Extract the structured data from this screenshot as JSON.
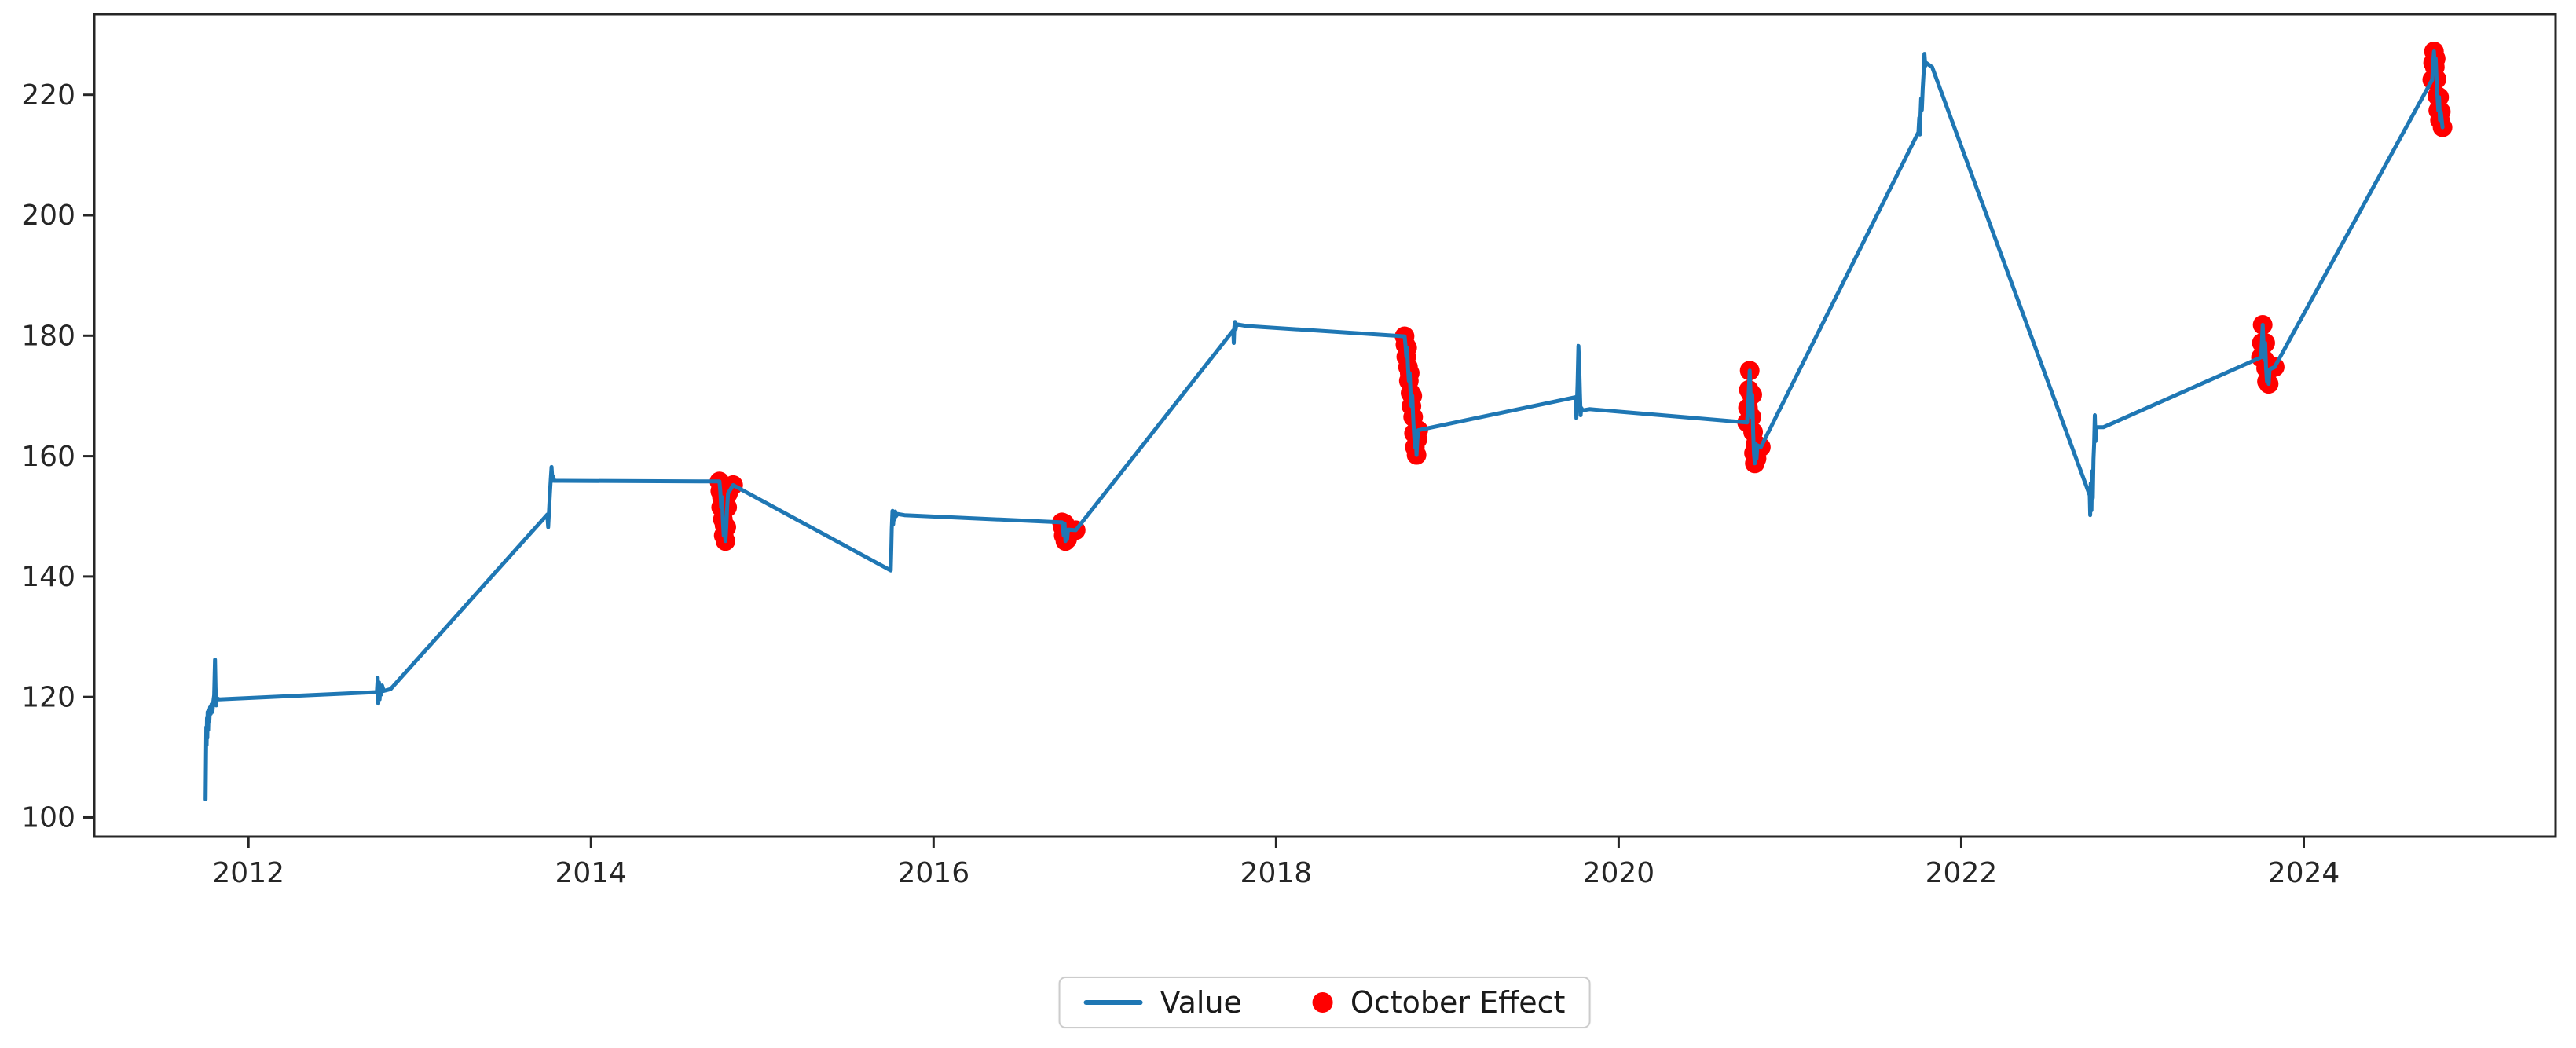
{
  "figure": {
    "background": "#ffffff",
    "axis_color": "#262626"
  },
  "legend": {
    "items": [
      {
        "label": "Value",
        "swatch": "line-swatch",
        "color": "#1f77b4"
      },
      {
        "label": "October Effect",
        "swatch": "dot-swatch",
        "color": "#ff0000"
      }
    ]
  },
  "chart_data": {
    "type": "line",
    "title": "",
    "xlabel": "",
    "ylabel": "",
    "grid": false,
    "legend_position": "bottom-center",
    "xlim": [
      2011.1,
      2025.47
    ],
    "ylim": [
      96.8,
      233.4
    ],
    "x_ticks": [
      2012,
      2014,
      2016,
      2018,
      2020,
      2022,
      2024
    ],
    "y_ticks": [
      100,
      120,
      140,
      160,
      180,
      200,
      220
    ],
    "october_effect_years": [
      2014,
      2016,
      2018,
      2020,
      2023,
      2024
    ],
    "series": [
      {
        "name": "Value",
        "type": "line",
        "color": "#1f77b4",
        "points": [
          [
            2011.75,
            103.0
          ],
          [
            2011.752,
            110.0
          ],
          [
            2011.754,
            115.0
          ],
          [
            2011.756,
            112.0
          ],
          [
            2011.758,
            116.5
          ],
          [
            2011.76,
            113.2
          ],
          [
            2011.762,
            117.5
          ],
          [
            2011.765,
            114.5
          ],
          [
            2011.768,
            117.8
          ],
          [
            2011.772,
            116.0
          ],
          [
            2011.776,
            118.3
          ],
          [
            2011.78,
            117.2
          ],
          [
            2011.785,
            118.8
          ],
          [
            2011.79,
            117.5
          ],
          [
            2011.795,
            119.2
          ],
          [
            2011.8,
            120.3
          ],
          [
            2011.805,
            126.2
          ],
          [
            2011.808,
            121.5
          ],
          [
            2011.812,
            118.6
          ],
          [
            2011.816,
            119.8
          ],
          [
            2011.83,
            119.6
          ],
          [
            2012.75,
            120.8
          ],
          [
            2012.755,
            123.2
          ],
          [
            2012.758,
            118.9
          ],
          [
            2012.762,
            122.4
          ],
          [
            2012.766,
            119.6
          ],
          [
            2012.77,
            121.8
          ],
          [
            2012.775,
            120.4
          ],
          [
            2012.78,
            121.9
          ],
          [
            2012.79,
            121.0
          ],
          [
            2012.83,
            121.3
          ],
          [
            2013.745,
            150.3
          ],
          [
            2013.75,
            148.2
          ],
          [
            2013.755,
            151.0
          ],
          [
            2013.76,
            153.5
          ],
          [
            2013.765,
            156.0
          ],
          [
            2013.77,
            158.2
          ],
          [
            2013.775,
            155.9
          ],
          [
            2013.78,
            156.6
          ],
          [
            2013.785,
            155.9
          ],
          [
            2013.83,
            155.9
          ],
          [
            2014.75,
            155.8
          ],
          [
            2014.755,
            154.2
          ],
          [
            2014.76,
            151.5
          ],
          [
            2014.765,
            153.2
          ],
          [
            2014.77,
            149.5
          ],
          [
            2014.775,
            146.8
          ],
          [
            2014.78,
            148.5
          ],
          [
            2014.785,
            145.9
          ],
          [
            2014.79,
            148.2
          ],
          [
            2014.795,
            151.5
          ],
          [
            2014.8,
            153.8
          ],
          [
            2014.83,
            155.2
          ],
          [
            2015.75,
            141.0
          ],
          [
            2015.753,
            144.5
          ],
          [
            2015.756,
            148.0
          ],
          [
            2015.76,
            150.9
          ],
          [
            2015.764,
            148.7
          ],
          [
            2015.768,
            150.6
          ],
          [
            2015.772,
            149.5
          ],
          [
            2015.776,
            150.8
          ],
          [
            2015.78,
            150.0
          ],
          [
            2015.79,
            150.4
          ],
          [
            2015.83,
            150.2
          ],
          [
            2016.75,
            149.0
          ],
          [
            2016.755,
            148.2
          ],
          [
            2016.76,
            146.8
          ],
          [
            2016.765,
            148.8
          ],
          [
            2016.77,
            145.9
          ],
          [
            2016.775,
            147.3
          ],
          [
            2016.78,
            146.2
          ],
          [
            2016.785,
            147.8
          ],
          [
            2016.83,
            147.7
          ],
          [
            2017.75,
            180.9
          ],
          [
            2017.753,
            178.8
          ],
          [
            2017.756,
            181.4
          ],
          [
            2017.76,
            182.3
          ],
          [
            2017.764,
            181.1
          ],
          [
            2017.768,
            181.9
          ],
          [
            2017.83,
            181.6
          ],
          [
            2018.75,
            179.9
          ],
          [
            2018.755,
            178.5
          ],
          [
            2018.76,
            176.5
          ],
          [
            2018.765,
            178.0
          ],
          [
            2018.77,
            174.8
          ],
          [
            2018.775,
            172.5
          ],
          [
            2018.78,
            173.8
          ],
          [
            2018.785,
            170.5
          ],
          [
            2018.79,
            168.3
          ],
          [
            2018.795,
            170.0
          ],
          [
            2018.8,
            166.5
          ],
          [
            2018.805,
            163.8
          ],
          [
            2018.81,
            161.5
          ],
          [
            2018.815,
            163.5
          ],
          [
            2018.82,
            160.2
          ],
          [
            2018.825,
            162.8
          ],
          [
            2018.83,
            164.3
          ],
          [
            2019.75,
            169.8
          ],
          [
            2019.753,
            166.3
          ],
          [
            2019.756,
            168.5
          ],
          [
            2019.76,
            172.0
          ],
          [
            2019.765,
            178.3
          ],
          [
            2019.77,
            174.5
          ],
          [
            2019.774,
            170.5
          ],
          [
            2019.778,
            166.8
          ],
          [
            2019.782,
            168.0
          ],
          [
            2019.79,
            167.6
          ],
          [
            2019.83,
            167.8
          ],
          [
            2020.75,
            165.6
          ],
          [
            2020.755,
            168.0
          ],
          [
            2020.76,
            171.0
          ],
          [
            2020.765,
            174.2
          ],
          [
            2020.77,
            170.5
          ],
          [
            2020.775,
            166.5
          ],
          [
            2020.78,
            170.2
          ],
          [
            2020.785,
            164.0
          ],
          [
            2020.79,
            160.5
          ],
          [
            2020.795,
            158.8
          ],
          [
            2020.8,
            162.0
          ],
          [
            2020.805,
            159.6
          ],
          [
            2020.81,
            161.8
          ],
          [
            2020.83,
            161.5
          ],
          [
            2021.75,
            213.8
          ],
          [
            2021.755,
            216.2
          ],
          [
            2021.758,
            213.4
          ],
          [
            2021.762,
            216.8
          ],
          [
            2021.766,
            219.4
          ],
          [
            2021.77,
            217.5
          ],
          [
            2021.775,
            221.0
          ],
          [
            2021.78,
            223.5
          ],
          [
            2021.785,
            226.8
          ],
          [
            2021.79,
            224.8
          ],
          [
            2021.795,
            225.3
          ],
          [
            2021.83,
            224.6
          ],
          [
            2022.75,
            153.5
          ],
          [
            2022.753,
            150.2
          ],
          [
            2022.756,
            155.5
          ],
          [
            2022.76,
            151.0
          ],
          [
            2022.764,
            157.5
          ],
          [
            2022.768,
            153.0
          ],
          [
            2022.772,
            159.5
          ],
          [
            2022.776,
            162.0
          ],
          [
            2022.78,
            166.8
          ],
          [
            2022.784,
            162.5
          ],
          [
            2022.788,
            164.8
          ],
          [
            2022.83,
            164.8
          ],
          [
            2023.75,
            176.4
          ],
          [
            2023.755,
            178.8
          ],
          [
            2023.76,
            181.8
          ],
          [
            2023.765,
            178.5
          ],
          [
            2023.77,
            176.0
          ],
          [
            2023.775,
            178.8
          ],
          [
            2023.78,
            174.6
          ],
          [
            2023.785,
            172.4
          ],
          [
            2023.79,
            174.2
          ],
          [
            2023.795,
            172.0
          ],
          [
            2023.8,
            174.4
          ],
          [
            2023.83,
            174.8
          ],
          [
            2024.75,
            222.5
          ],
          [
            2024.755,
            225.3
          ],
          [
            2024.76,
            227.2
          ],
          [
            2024.765,
            224.6
          ],
          [
            2024.77,
            226.0
          ],
          [
            2024.775,
            222.6
          ],
          [
            2024.78,
            219.8
          ],
          [
            2024.785,
            217.4
          ],
          [
            2024.79,
            219.6
          ],
          [
            2024.795,
            215.8
          ],
          [
            2024.8,
            217.2
          ],
          [
            2024.81,
            214.6
          ]
        ]
      },
      {
        "name": "October Effect",
        "type": "scatter",
        "color": "#ff0000",
        "points": [
          [
            2014.75,
            155.8
          ],
          [
            2014.755,
            154.2
          ],
          [
            2014.76,
            151.5
          ],
          [
            2014.765,
            153.2
          ],
          [
            2014.77,
            149.5
          ],
          [
            2014.775,
            146.8
          ],
          [
            2014.78,
            148.5
          ],
          [
            2014.785,
            145.9
          ],
          [
            2014.79,
            148.2
          ],
          [
            2014.795,
            151.5
          ],
          [
            2014.8,
            153.8
          ],
          [
            2014.83,
            155.2
          ],
          [
            2016.75,
            149.0
          ],
          [
            2016.755,
            148.2
          ],
          [
            2016.76,
            146.8
          ],
          [
            2016.765,
            148.8
          ],
          [
            2016.77,
            145.9
          ],
          [
            2016.775,
            147.3
          ],
          [
            2016.78,
            146.2
          ],
          [
            2016.785,
            147.8
          ],
          [
            2016.83,
            147.7
          ],
          [
            2018.75,
            179.9
          ],
          [
            2018.755,
            178.5
          ],
          [
            2018.76,
            176.5
          ],
          [
            2018.765,
            178.0
          ],
          [
            2018.77,
            174.8
          ],
          [
            2018.775,
            172.5
          ],
          [
            2018.78,
            173.8
          ],
          [
            2018.785,
            170.5
          ],
          [
            2018.79,
            168.3
          ],
          [
            2018.795,
            170.0
          ],
          [
            2018.8,
            166.5
          ],
          [
            2018.805,
            163.8
          ],
          [
            2018.81,
            161.5
          ],
          [
            2018.815,
            163.5
          ],
          [
            2018.82,
            160.2
          ],
          [
            2018.825,
            162.8
          ],
          [
            2018.83,
            164.3
          ],
          [
            2020.75,
            165.6
          ],
          [
            2020.755,
            168.0
          ],
          [
            2020.76,
            171.0
          ],
          [
            2020.765,
            174.2
          ],
          [
            2020.77,
            170.5
          ],
          [
            2020.775,
            166.5
          ],
          [
            2020.78,
            170.2
          ],
          [
            2020.785,
            164.0
          ],
          [
            2020.79,
            160.5
          ],
          [
            2020.795,
            158.8
          ],
          [
            2020.8,
            162.0
          ],
          [
            2020.805,
            159.6
          ],
          [
            2020.81,
            161.8
          ],
          [
            2020.83,
            161.5
          ],
          [
            2023.75,
            176.4
          ],
          [
            2023.755,
            178.8
          ],
          [
            2023.76,
            181.8
          ],
          [
            2023.765,
            178.5
          ],
          [
            2023.77,
            176.0
          ],
          [
            2023.775,
            178.8
          ],
          [
            2023.78,
            174.6
          ],
          [
            2023.785,
            172.4
          ],
          [
            2023.79,
            174.2
          ],
          [
            2023.795,
            172.0
          ],
          [
            2023.8,
            174.4
          ],
          [
            2023.83,
            174.8
          ],
          [
            2024.75,
            222.5
          ],
          [
            2024.755,
            225.3
          ],
          [
            2024.76,
            227.2
          ],
          [
            2024.765,
            224.6
          ],
          [
            2024.77,
            226.0
          ],
          [
            2024.775,
            222.6
          ],
          [
            2024.78,
            219.8
          ],
          [
            2024.785,
            217.4
          ],
          [
            2024.79,
            219.6
          ],
          [
            2024.795,
            215.8
          ],
          [
            2024.8,
            217.2
          ],
          [
            2024.81,
            214.6
          ]
        ]
      }
    ]
  }
}
